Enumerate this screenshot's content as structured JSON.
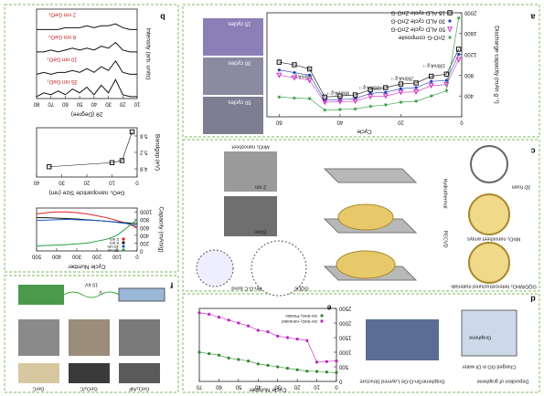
{
  "panel_labels": [
    "a",
    "b",
    "c",
    "d",
    "e",
    "f"
  ],
  "panel_a": {
    "sem_labels": [
      "15 cycles",
      "30 cycles",
      "50 cycles"
    ],
    "rates": [
      "100mA g⁻¹",
      "250mA g⁻¹",
      "500mA g⁻¹",
      "800mA g⁻¹",
      "100mA g⁻¹"
    ]
  },
  "panel_c": {
    "labels": [
      "MnO₂ nanosheet",
      "2 nm",
      "20nm",
      "3D foam",
      "Hydrothermal",
      "MnO₂ nanosheet arrays",
      "PECVD",
      "GQD/MnO₂ heterostructured materials",
      "Mn-O-C bond",
      "GQDs"
    ]
  },
  "panel_d": {
    "labels": [
      "Deposition of graphene",
      "Graphene/Sn-O-Ge Layered Structure",
      "Graphene",
      "Charged GO in DI water"
    ]
  },
  "panel_f": {
    "labels": [
      "15 kV",
      "V",
      "Ge/C",
      "GeO₂/C",
      "GeO₂/NF"
    ]
  },
  "chart_data": [
    {
      "type": "line",
      "x_label": "Cycle",
      "y_label": "Discharge capacity (mAh g⁻¹)",
      "xlim": [
        0,
        64
      ],
      "xticks": [
        0,
        20,
        40,
        60
      ],
      "ylim": [
        0,
        2000
      ],
      "yticks": [
        400,
        800,
        1200,
        1600,
        2000
      ],
      "x": [
        1,
        5,
        10,
        15,
        20,
        25,
        30,
        35,
        40,
        45,
        50,
        55,
        60
      ],
      "series": [
        {
          "name": "15 ALD cycle ZnO-G",
          "color": "#111111",
          "marker": "square",
          "values": [
            1300,
            820,
            780,
            650,
            630,
            560,
            520,
            420,
            400,
            380,
            920,
            1000,
            1050
          ]
        },
        {
          "name": "30 ALD cycle ZnO-G",
          "color": "#1f3fbf",
          "marker": "circle",
          "values": [
            1200,
            700,
            680,
            560,
            540,
            470,
            450,
            350,
            330,
            320,
            800,
            850,
            900
          ]
        },
        {
          "name": "50 ALD cycle ZnO-G",
          "color": "#d12fc8",
          "marker": "triangle",
          "values": [
            1100,
            620,
            600,
            480,
            470,
            400,
            390,
            300,
            290,
            280,
            700,
            750,
            800
          ]
        },
        {
          "name": "ZnO-G composite",
          "color": "#2a9a3a",
          "marker": "star",
          "values": [
            1900,
            500,
            400,
            300,
            280,
            230,
            200,
            150,
            140,
            130,
            350,
            360,
            380
          ]
        }
      ]
    },
    {
      "type": "line",
      "bands": true,
      "x_label": "2θ (Degree)",
      "y_label": "Intensity (arb. units)",
      "xlim": [
        10,
        80
      ],
      "xticks": [
        10,
        20,
        30,
        40,
        50,
        60,
        70,
        80
      ],
      "ylim": [
        0,
        10
      ],
      "x": [
        10,
        15,
        20,
        25,
        30,
        35,
        40,
        45,
        50,
        55,
        60,
        65,
        70,
        75,
        80
      ],
      "series": [
        {
          "name": "2 nm GeO₂",
          "color": "#111111",
          "marker": "none",
          "values": [
            1,
            1,
            2,
            4,
            3,
            3,
            2,
            3,
            2,
            2,
            2,
            1,
            1,
            1,
            1
          ]
        },
        {
          "name": "6 nm GeO₂",
          "color": "#111111",
          "marker": "none",
          "values": [
            1,
            1,
            2,
            6,
            3,
            4,
            2,
            3,
            2,
            3,
            2,
            1,
            2,
            1,
            1
          ]
        },
        {
          "name": "10 nm GeO₂",
          "color": "#111111",
          "marker": "none",
          "values": [
            1,
            1,
            2,
            8,
            3,
            5,
            2,
            4,
            2,
            3,
            2,
            2,
            1,
            2,
            1
          ]
        },
        {
          "name": "35 nm GeO₂",
          "color": "#111111",
          "marker": "none",
          "values": [
            1,
            1,
            2,
            10,
            3,
            7,
            2,
            6,
            3,
            5,
            2,
            4,
            2,
            3,
            1
          ]
        }
      ]
    },
    {
      "type": "line",
      "x_label": "GeO₂ nanoparticle Size (nm)",
      "y_label": "Bandgap (eV)",
      "xlim": [
        0,
        40
      ],
      "xticks": [
        0,
        10,
        20,
        30,
        40
      ],
      "ylim": [
        4.6,
        5.8
      ],
      "yticks": [
        4.8,
        5.2,
        5.6
      ],
      "x": [
        2,
        6,
        10,
        35
      ],
      "series": [
        {
          "color": "#111111",
          "marker": "square",
          "values": [
            5.7,
            5.0,
            4.95,
            4.85
          ]
        }
      ]
    },
    {
      "type": "line",
      "x_label": "Cycle Number",
      "y_label": "Capacity (mAh/g)",
      "xlim": [
        0,
        500
      ],
      "xticks": [
        0,
        100,
        200,
        300,
        400,
        500
      ],
      "ylim": [
        0,
        1100
      ],
      "yticks": [
        0,
        200,
        400,
        600,
        800,
        1000
      ],
      "x": [
        0,
        50,
        100,
        150,
        200,
        250,
        300,
        350,
        400,
        450,
        500
      ],
      "series": [
        {
          "name": "2 nm",
          "color": "#e02020",
          "marker": "none",
          "values": [
            600,
            700,
            780,
            850,
            900,
            950,
            980,
            1000,
            1000,
            980,
            950
          ]
        },
        {
          "name": "6 nm",
          "color": "#111111",
          "marker": "none",
          "values": [
            700,
            720,
            740,
            760,
            780,
            800,
            820,
            830,
            840,
            850,
            850
          ]
        },
        {
          "name": "10 nm",
          "color": "#1f5fd0",
          "marker": "none",
          "values": [
            650,
            700,
            730,
            760,
            780,
            790,
            800,
            810,
            800,
            790,
            780
          ]
        },
        {
          "name": "35 nm",
          "color": "#20a040",
          "marker": "none",
          "values": [
            800,
            600,
            400,
            300,
            250,
            200,
            180,
            160,
            150,
            140,
            130
          ]
        }
      ]
    },
    {
      "type": "line",
      "x_label": "Cycle Number",
      "xlim": [
        0,
        70
      ],
      "xticks": [
        0,
        10,
        20,
        30,
        40,
        50,
        60,
        70
      ],
      "ylim": [
        0,
        2500
      ],
      "yticks": [
        0,
        500,
        1000,
        1500,
        2000,
        2500
      ],
      "x": [
        0,
        5,
        10,
        15,
        20,
        25,
        30,
        35,
        40,
        45,
        50,
        55,
        60,
        65,
        70
      ],
      "series": [
        {
          "name": "Ge-SnO₂-Pristine",
          "color": "#2a8a2a",
          "marker": "circle",
          "values": [
            300,
            320,
            340,
            350,
            400,
            450,
            500,
            550,
            600,
            700,
            750,
            800,
            900,
            950,
            1000
          ]
        },
        {
          "name": "Ge-SnO₂-Annealed",
          "color": "#c020c0",
          "marker": "circle",
          "values": [
            700,
            680,
            660,
            1400,
            1450,
            1500,
            1550,
            1700,
            1750,
            1900,
            2000,
            2100,
            2200,
            2300,
            2350
          ]
        }
      ]
    }
  ]
}
